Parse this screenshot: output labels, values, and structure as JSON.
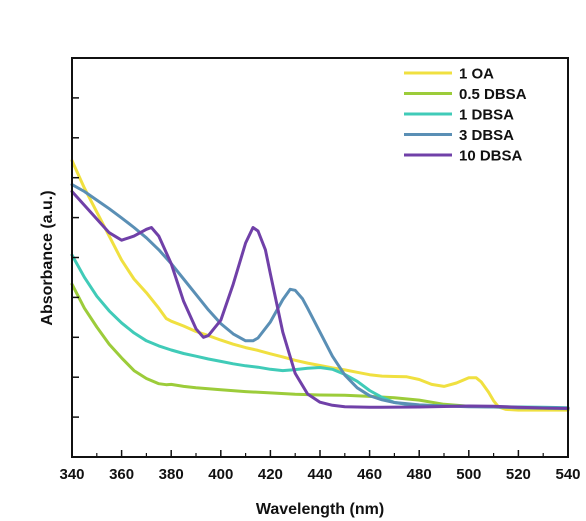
{
  "chart_data": {
    "type": "line",
    "xlabel": "Wavelength (nm)",
    "ylabel": "Absorbance (a.u.)",
    "xlim": [
      340,
      540
    ],
    "ylim": [
      0,
      1
    ],
    "x_ticks": [
      "340",
      "360",
      "380",
      "400",
      "420",
      "440",
      "460",
      "480",
      "500",
      "520",
      "540"
    ],
    "y_ticks_labeled": false,
    "legend_position": "top-right",
    "grid": false,
    "series": [
      {
        "name": "1 OA",
        "color": "#f0e040",
        "points": [
          [
            340,
            0.73
          ],
          [
            345,
            0.65
          ],
          [
            350,
            0.58
          ],
          [
            355,
            0.51
          ],
          [
            360,
            0.44
          ],
          [
            365,
            0.385
          ],
          [
            370,
            0.345
          ],
          [
            375,
            0.3
          ],
          [
            378,
            0.27
          ],
          [
            380,
            0.262
          ],
          [
            385,
            0.248
          ],
          [
            390,
            0.232
          ],
          [
            395,
            0.22
          ],
          [
            400,
            0.207
          ],
          [
            405,
            0.195
          ],
          [
            410,
            0.185
          ],
          [
            415,
            0.177
          ],
          [
            420,
            0.167
          ],
          [
            425,
            0.158
          ],
          [
            430,
            0.148
          ],
          [
            435,
            0.14
          ],
          [
            440,
            0.133
          ],
          [
            445,
            0.126
          ],
          [
            450,
            0.12
          ],
          [
            455,
            0.113
          ],
          [
            460,
            0.106
          ],
          [
            465,
            0.102
          ],
          [
            470,
            0.101
          ],
          [
            475,
            0.1
          ],
          [
            480,
            0.092
          ],
          [
            485,
            0.078
          ],
          [
            490,
            0.072
          ],
          [
            495,
            0.082
          ],
          [
            500,
            0.097
          ],
          [
            503,
            0.097
          ],
          [
            505,
            0.085
          ],
          [
            508,
            0.055
          ],
          [
            510,
            0.03
          ],
          [
            512,
            0.012
          ],
          [
            515,
            0.005
          ],
          [
            520,
            0.003
          ],
          [
            530,
            0.003
          ],
          [
            540,
            0.003
          ]
        ]
      },
      {
        "name": "0.5 DBSA",
        "color": "#9ccc3a",
        "points": [
          [
            340,
            0.37
          ],
          [
            345,
            0.3
          ],
          [
            350,
            0.245
          ],
          [
            355,
            0.195
          ],
          [
            360,
            0.155
          ],
          [
            365,
            0.118
          ],
          [
            370,
            0.095
          ],
          [
            375,
            0.08
          ],
          [
            378,
            0.077
          ],
          [
            380,
            0.078
          ],
          [
            385,
            0.072
          ],
          [
            390,
            0.068
          ],
          [
            400,
            0.062
          ],
          [
            410,
            0.057
          ],
          [
            420,
            0.053
          ],
          [
            430,
            0.049
          ],
          [
            440,
            0.047
          ],
          [
            450,
            0.046
          ],
          [
            460,
            0.043
          ],
          [
            470,
            0.039
          ],
          [
            480,
            0.032
          ],
          [
            490,
            0.02
          ],
          [
            500,
            0.014
          ],
          [
            510,
            0.012
          ],
          [
            520,
            0.01
          ],
          [
            530,
            0.008
          ],
          [
            540,
            0.007
          ]
        ]
      },
      {
        "name": "1 DBSA",
        "color": "#40cbb8",
        "points": [
          [
            340,
            0.455
          ],
          [
            345,
            0.39
          ],
          [
            350,
            0.335
          ],
          [
            355,
            0.292
          ],
          [
            360,
            0.257
          ],
          [
            365,
            0.228
          ],
          [
            370,
            0.205
          ],
          [
            375,
            0.19
          ],
          [
            380,
            0.178
          ],
          [
            385,
            0.168
          ],
          [
            390,
            0.16
          ],
          [
            395,
            0.152
          ],
          [
            400,
            0.145
          ],
          [
            405,
            0.138
          ],
          [
            410,
            0.132
          ],
          [
            415,
            0.128
          ],
          [
            420,
            0.122
          ],
          [
            425,
            0.118
          ],
          [
            430,
            0.121
          ],
          [
            435,
            0.125
          ],
          [
            440,
            0.127
          ],
          [
            445,
            0.122
          ],
          [
            450,
            0.107
          ],
          [
            455,
            0.087
          ],
          [
            460,
            0.06
          ],
          [
            465,
            0.04
          ],
          [
            470,
            0.025
          ],
          [
            475,
            0.02
          ],
          [
            480,
            0.017
          ],
          [
            490,
            0.015
          ],
          [
            500,
            0.014
          ],
          [
            510,
            0.013
          ],
          [
            520,
            0.012
          ],
          [
            530,
            0.011
          ],
          [
            540,
            0.01
          ]
        ]
      },
      {
        "name": "3 DBSA",
        "color": "#5a8fb5",
        "points": [
          [
            340,
            0.66
          ],
          [
            345,
            0.64
          ],
          [
            350,
            0.615
          ],
          [
            355,
            0.59
          ],
          [
            360,
            0.563
          ],
          [
            365,
            0.535
          ],
          [
            370,
            0.505
          ],
          [
            375,
            0.47
          ],
          [
            380,
            0.43
          ],
          [
            385,
            0.385
          ],
          [
            390,
            0.34
          ],
          [
            395,
            0.295
          ],
          [
            400,
            0.255
          ],
          [
            405,
            0.225
          ],
          [
            410,
            0.205
          ],
          [
            413,
            0.205
          ],
          [
            415,
            0.213
          ],
          [
            420,
            0.26
          ],
          [
            425,
            0.325
          ],
          [
            428,
            0.355
          ],
          [
            430,
            0.352
          ],
          [
            433,
            0.327
          ],
          [
            435,
            0.3
          ],
          [
            440,
            0.23
          ],
          [
            445,
            0.16
          ],
          [
            450,
            0.105
          ],
          [
            455,
            0.068
          ],
          [
            460,
            0.045
          ],
          [
            465,
            0.033
          ],
          [
            470,
            0.025
          ],
          [
            480,
            0.018
          ],
          [
            490,
            0.015
          ],
          [
            500,
            0.013
          ],
          [
            510,
            0.012
          ],
          [
            520,
            0.01
          ],
          [
            530,
            0.009
          ],
          [
            540,
            0.008
          ]
        ]
      },
      {
        "name": "10 DBSA",
        "color": "#7040a8",
        "points": [
          [
            340,
            0.64
          ],
          [
            345,
            0.6
          ],
          [
            350,
            0.56
          ],
          [
            355,
            0.52
          ],
          [
            360,
            0.498
          ],
          [
            365,
            0.51
          ],
          [
            370,
            0.53
          ],
          [
            372,
            0.535
          ],
          [
            375,
            0.51
          ],
          [
            380,
            0.43
          ],
          [
            385,
            0.32
          ],
          [
            390,
            0.24
          ],
          [
            393,
            0.215
          ],
          [
            395,
            0.22
          ],
          [
            400,
            0.265
          ],
          [
            405,
            0.37
          ],
          [
            410,
            0.49
          ],
          [
            413,
            0.535
          ],
          [
            415,
            0.525
          ],
          [
            418,
            0.47
          ],
          [
            420,
            0.4
          ],
          [
            425,
            0.23
          ],
          [
            430,
            0.11
          ],
          [
            435,
            0.05
          ],
          [
            440,
            0.026
          ],
          [
            445,
            0.017
          ],
          [
            450,
            0.013
          ],
          [
            460,
            0.011
          ],
          [
            480,
            0.012
          ],
          [
            500,
            0.015
          ],
          [
            510,
            0.014
          ],
          [
            520,
            0.011
          ],
          [
            530,
            0.009
          ],
          [
            540,
            0.008
          ]
        ]
      }
    ]
  }
}
